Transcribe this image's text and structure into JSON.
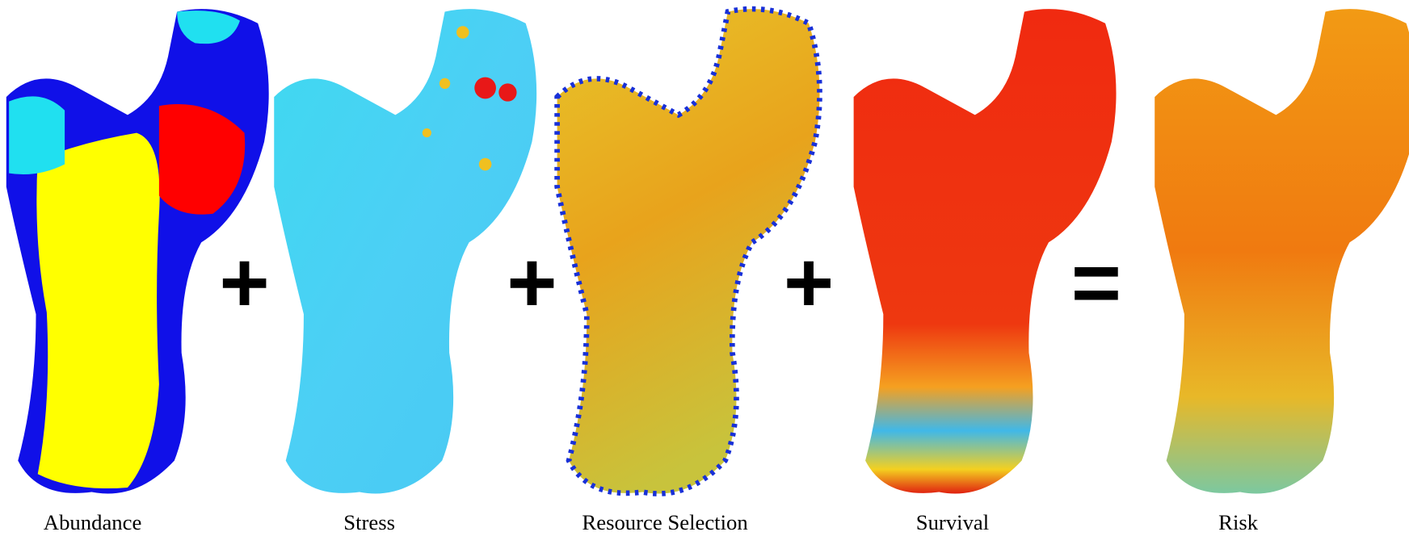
{
  "panels": [
    {
      "label": "Abundance"
    },
    {
      "label": "Stress"
    },
    {
      "label": "Resource Selection"
    },
    {
      "label": "Survival"
    },
    {
      "label": "Risk"
    }
  ],
  "operators": [
    "+",
    "+",
    "+",
    "="
  ]
}
